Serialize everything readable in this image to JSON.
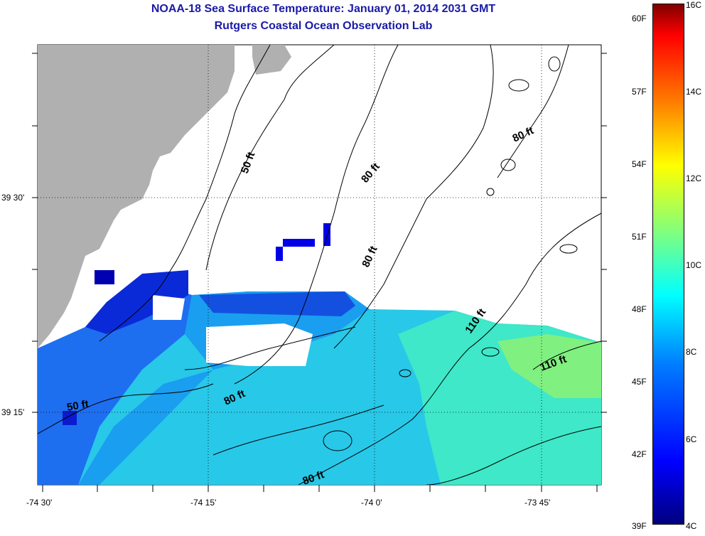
{
  "header": {
    "title": "NOAA-18 Sea Surface Temperature:  January 01, 2014 2031 GMT",
    "subtitle": "Rutgers Coastal Ocean Observation Lab"
  },
  "axes": {
    "lat_labels": [
      "39 30'",
      "39 15'"
    ],
    "lon_labels": [
      "-74 30'",
      "-74 15'",
      "-74 0'",
      "-73 45'"
    ]
  },
  "contours": [
    "50 ft",
    "80 ft",
    "80 ft",
    "80 ft",
    "50 ft",
    "80 ft",
    "110 ft",
    "110 ft",
    "80 ft"
  ],
  "colorbar": {
    "fahrenheit": [
      "60F",
      "57F",
      "54F",
      "51F",
      "48F",
      "45F",
      "42F",
      "39F"
    ],
    "celsius": [
      "16C",
      "14C",
      "12C",
      "10C",
      "8C",
      "6C",
      "4C"
    ]
  },
  "colors": {
    "land": "#b0b0b0",
    "title": "#1a1aa8",
    "cloud": "#ffffff"
  }
}
